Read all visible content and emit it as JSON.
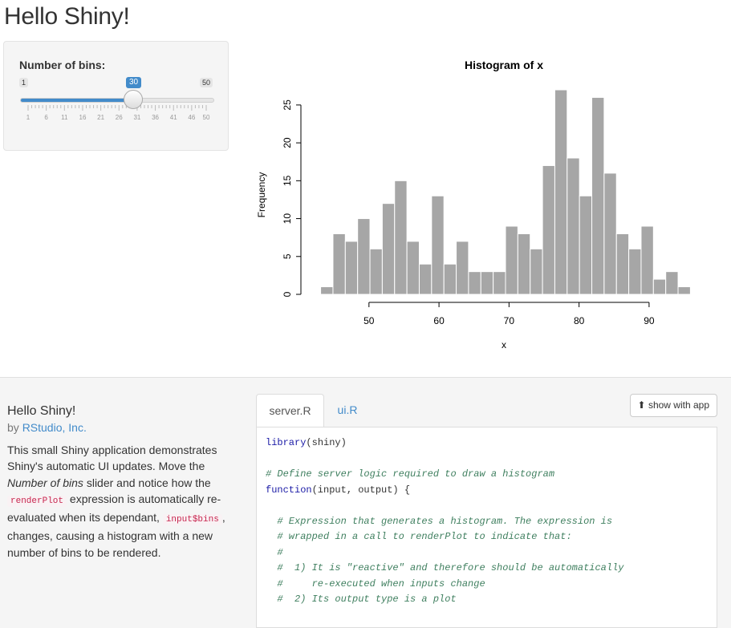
{
  "page_title": "Hello Shiny!",
  "slider": {
    "label": "Number of bins:",
    "min": "1",
    "max": "50",
    "value": "30",
    "value_num": 30,
    "ticks": [
      "1",
      "6",
      "11",
      "16",
      "21",
      "26",
      "31",
      "36",
      "41",
      "46",
      "50"
    ],
    "accent_color": "#428bca"
  },
  "chart_data": {
    "type": "bar",
    "title": "Histogram of x",
    "xlabel": "x",
    "ylabel": "Frequency",
    "bin_start": 43.1,
    "bin_width": 1.76,
    "values": [
      1,
      8,
      7,
      10,
      6,
      12,
      15,
      7,
      4,
      13,
      4,
      7,
      3,
      3,
      3,
      9,
      8,
      6,
      17,
      27,
      18,
      13,
      26,
      16,
      8,
      6,
      9,
      2,
      3,
      1
    ],
    "x_ticks": [
      "50",
      "60",
      "70",
      "80",
      "90"
    ],
    "y_ticks": [
      "0",
      "5",
      "10",
      "15",
      "20",
      "25"
    ],
    "xlim": [
      42,
      97
    ],
    "ylim": [
      0,
      27
    ],
    "bar_color": "#a6a6a6",
    "grid": false
  },
  "about": {
    "title": "Hello Shiny!",
    "by": "by",
    "author": "RStudio, Inc.",
    "desc_1": "This small Shiny application demonstrates Shiny's automatic UI updates. Move the ",
    "desc_em": "Number of bins",
    "desc_2": " slider and notice how the ",
    "code_1": "renderPlot",
    "desc_3": " expression is automatically re-evaluated when its dependant, ",
    "code_2": "input$bins",
    "desc_4": ", changes, causing a histogram with a new number of bins to be rendered."
  },
  "tabs": {
    "active": "server.R",
    "other": "ui.R"
  },
  "show_button": "show with app",
  "code_lines": {
    "l1_kw": "library",
    "l1_rest": "(shiny)",
    "l3": "# Define server logic required to draw a histogram",
    "l4_kw": "function",
    "l4_rest": "(input, output) {",
    "l6": "  # Expression that generates a histogram. The expression is",
    "l7": "  # wrapped in a call to renderPlot to indicate that:",
    "l8": "  #",
    "l9": "  #  1) It is \"reactive\" and therefore should be automatically",
    "l10": "  #     re-executed when inputs change",
    "l11": "  #  2) Its output type is a plot"
  }
}
